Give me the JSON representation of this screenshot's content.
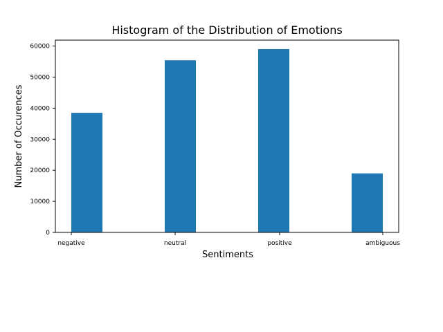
{
  "chart_data": {
    "type": "bar",
    "title": "Histogram of the Distribution of Emotions",
    "xlabel": "Sentiments",
    "ylabel": "Number of Occurences",
    "categories": [
      "negative",
      "neutral",
      "positive",
      "ambiguous"
    ],
    "values": [
      38500,
      55400,
      59000,
      19000
    ],
    "ylim": [
      0,
      61900
    ],
    "yticks": [
      0,
      10000,
      20000,
      30000,
      40000,
      50000,
      60000
    ],
    "ytick_labels": [
      "0",
      "10000",
      "20000",
      "30000",
      "40000",
      "50000",
      "60000"
    ],
    "bar_color": "#1f77b4",
    "grid": false,
    "legend": "none"
  }
}
